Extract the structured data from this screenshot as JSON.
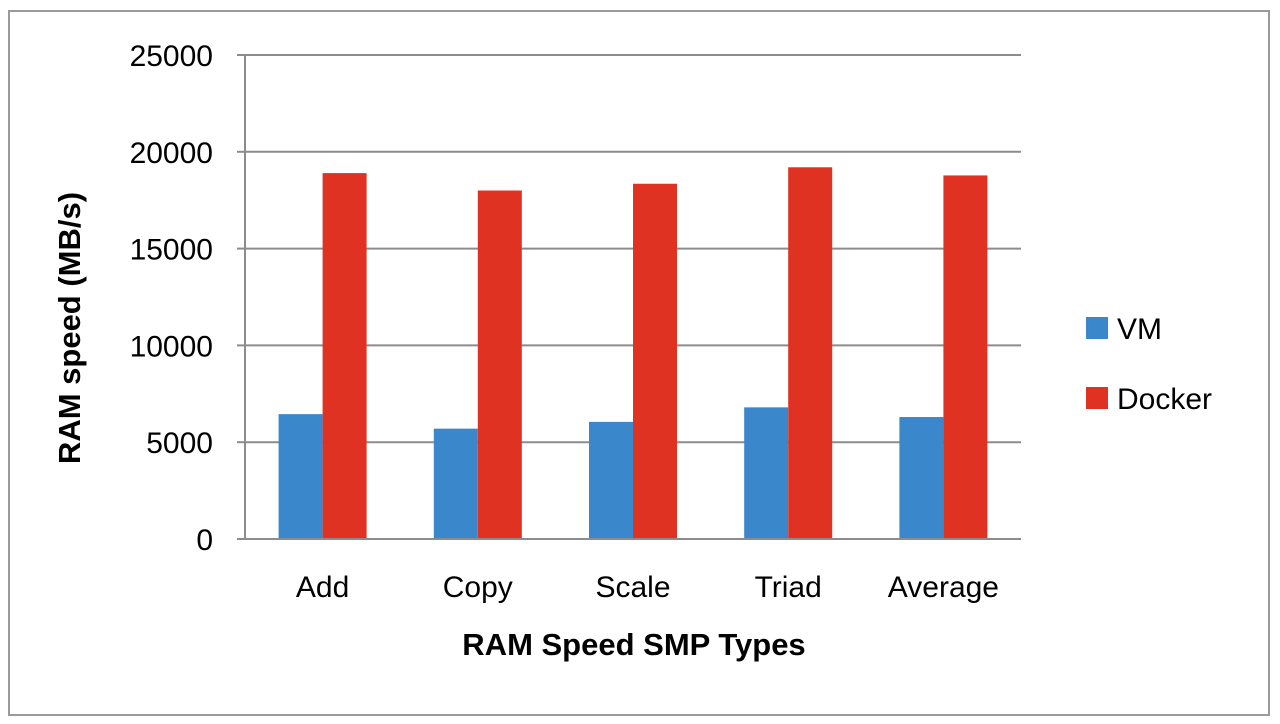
{
  "chart_data": {
    "type": "bar",
    "title": "",
    "xlabel": "RAM Speed SMP Types",
    "ylabel": "RAM speed (MB/s)",
    "categories": [
      "Add",
      "Copy",
      "Scale",
      "Triad",
      "Average"
    ],
    "series": [
      {
        "name": "VM",
        "color": "#3a87cc",
        "values": [
          6450,
          5700,
          6050,
          6800,
          6300
        ]
      },
      {
        "name": "Docker",
        "color": "#e03222",
        "values": [
          18900,
          18000,
          18350,
          19200,
          18780
        ]
      }
    ],
    "ylim": [
      0,
      25000
    ],
    "yticks": [
      "0",
      "5000",
      "10000",
      "15000",
      "20000",
      "25000"
    ],
    "grid": true,
    "legend_position": "right"
  }
}
